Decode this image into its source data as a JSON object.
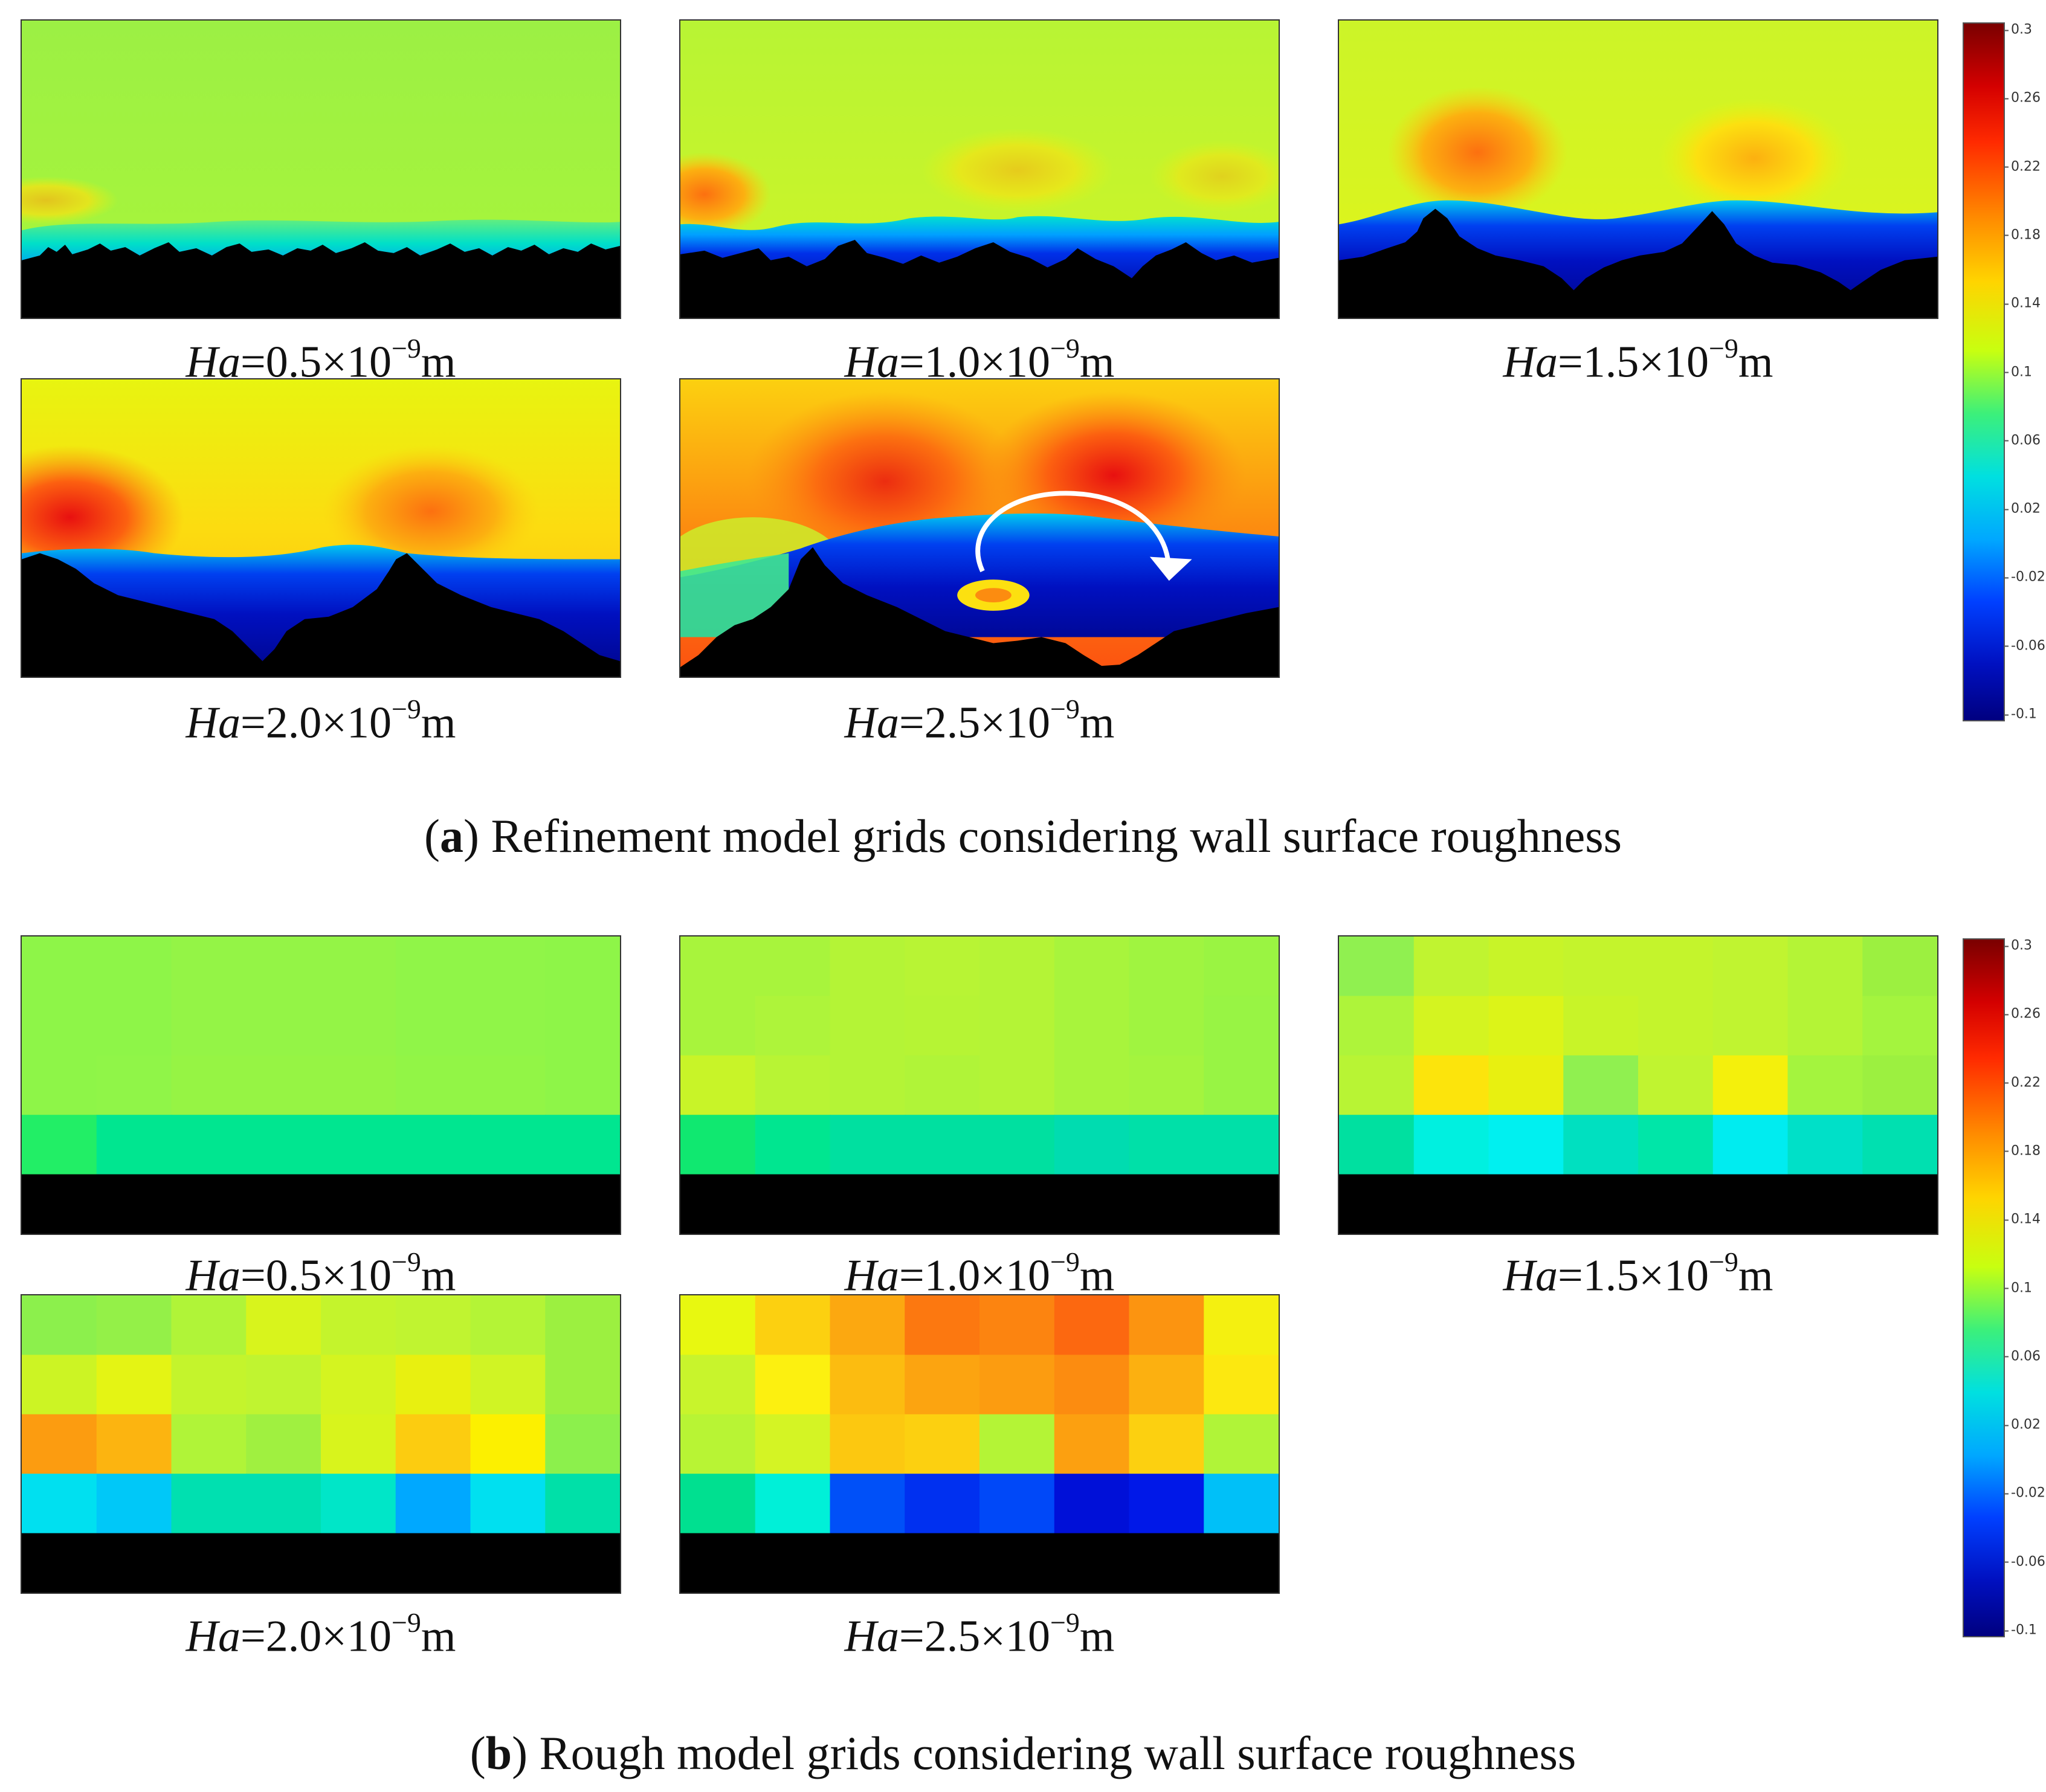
{
  "panel_labels": {
    "ha05": {
      "sym": "Ha",
      "text": "=0.5×10",
      "exp": "−9",
      "unit": "m"
    },
    "ha10": {
      "sym": "Ha",
      "text": "=1.0×10",
      "exp": "−9",
      "unit": "m"
    },
    "ha15": {
      "sym": "Ha",
      "text": "=1.5×10",
      "exp": "−9",
      "unit": "m"
    },
    "ha20": {
      "sym": "Ha",
      "text": "=2.0×10",
      "exp": "−9",
      "unit": "m"
    },
    "ha25": {
      "sym": "Ha",
      "text": "=2.5×10",
      "exp": "−9",
      "unit": "m"
    }
  },
  "captions": {
    "a": {
      "letter": "a",
      "text": " Refinement model grids considering wall surface roughness"
    },
    "b": {
      "letter": "b",
      "text": " Rough model grids considering wall surface roughness"
    }
  },
  "colorbar": {
    "ticks": [
      "0.3",
      "0.26",
      "0.22",
      "0.18",
      "0.14",
      "0.1",
      "0.06",
      "0.02",
      "-0.02",
      "-0.06",
      "-0.1"
    ],
    "colors": [
      "#7a0000",
      "#d40000",
      "#ff2a00",
      "#ff8c00",
      "#ffd400",
      "#c8ff10",
      "#3cf07a",
      "#00e0e0",
      "#00a8ff",
      "#0040ff",
      "#0010c0",
      "#000080"
    ]
  },
  "rough_grid_colors": {
    "ha05": [
      [
        "#8ef548",
        "#8ef548",
        "#94f446",
        "#94f446",
        "#94f446",
        "#90f548",
        "#90f548",
        "#8ef548"
      ],
      [
        "#8ef548",
        "#8ef548",
        "#94f446",
        "#94f446",
        "#94f446",
        "#90f548",
        "#90f548",
        "#8ef548"
      ],
      [
        "#8ef548",
        "#90f548",
        "#96f444",
        "#96f444",
        "#96f444",
        "#92f546",
        "#92f546",
        "#8ef548"
      ],
      [
        "#22ee66",
        "#00e690",
        "#00e690",
        "#00e690",
        "#00e690",
        "#00e690",
        "#00e690",
        "#00e690"
      ]
    ],
    "ha10": [
      [
        "#a8f43c",
        "#a8f43c",
        "#b4f436",
        "#b8f434",
        "#b4f436",
        "#a8f43c",
        "#a0f440",
        "#9af442"
      ],
      [
        "#a8f43c",
        "#aef43a",
        "#b4f436",
        "#b6f434",
        "#b4f436",
        "#a8f43c",
        "#a0f440",
        "#98f444"
      ],
      [
        "#c8f428",
        "#b8f434",
        "#b4f436",
        "#b0f438",
        "#b4f436",
        "#a8f43c",
        "#a4f43e",
        "#98f444"
      ],
      [
        "#10e870",
        "#00e690",
        "#00e0a0",
        "#00e0a0",
        "#00e0a0",
        "#00dcb0",
        "#00e0a8",
        "#00e0a8"
      ]
    ],
    "ha15": [
      [
        "#90f050",
        "#c0f430",
        "#c8f428",
        "#c4f42c",
        "#c4f42c",
        "#c0f430",
        "#b4f436",
        "#9cf040"
      ],
      [
        "#aef43a",
        "#d4f420",
        "#dcf418",
        "#c8f428",
        "#c4f42c",
        "#c0f430",
        "#b4f436",
        "#a4f43e"
      ],
      [
        "#b8f434",
        "#fce40c",
        "#e8f010",
        "#90f050",
        "#c0f430",
        "#f4f00c",
        "#a4f43e",
        "#9cf040"
      ],
      [
        "#00e0a0",
        "#00f0e0",
        "#00f0f0",
        "#00e0c0",
        "#00e6a8",
        "#00ecf0",
        "#00e0c8",
        "#00e0b0"
      ]
    ],
    "ha20": [
      [
        "#8cf04c",
        "#94f048",
        "#b0f438",
        "#d8f41c",
        "#c4f42c",
        "#c0f430",
        "#b4f436",
        "#9cf040"
      ],
      [
        "#ccf424",
        "#e4f414",
        "#c4f42c",
        "#c0f430",
        "#d4f420",
        "#e8f010",
        "#d0f424",
        "#9cf040"
      ],
      [
        "#fc9c10",
        "#fcb410",
        "#b0f438",
        "#a0f040",
        "#d8f41c",
        "#fccc10",
        "#fcf000",
        "#8cf04c"
      ],
      [
        "#00e0f0",
        "#00c8f8",
        "#00e0b0",
        "#00e0b0",
        "#00e6c8",
        "#00a8ff",
        "#00e0f0",
        "#00e0a8"
      ]
    ],
    "ha25": [
      [
        "#e8f810",
        "#fcd010",
        "#fca810",
        "#fc7810",
        "#fc8410",
        "#fc6810",
        "#fc9410",
        "#f4f010"
      ],
      [
        "#c8f42c",
        "#fcf010",
        "#fcbc10",
        "#fca410",
        "#fc9c10",
        "#fc8c10",
        "#fcb010",
        "#fce810"
      ],
      [
        "#b8f434",
        "#d4f424",
        "#fcc810",
        "#fcd010",
        "#b4f436",
        "#fca010",
        "#fcd010",
        "#b0f438"
      ],
      [
        "#00e090",
        "#00f0d8",
        "#0050f8",
        "#0030f0",
        "#0048f8",
        "#0010d8",
        "#0018e8",
        "#00c0f8"
      ]
    ]
  }
}
